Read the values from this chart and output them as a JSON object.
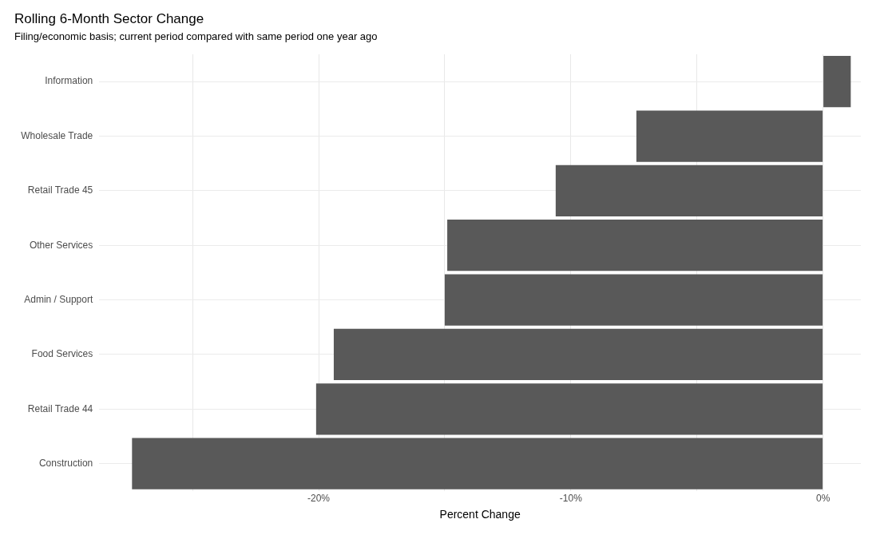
{
  "chart_data": {
    "type": "bar",
    "orientation": "horizontal",
    "title": "Rolling 6-Month Sector Change",
    "subtitle": "Filing/economic basis; current period compared with same period one year ago",
    "xlabel": "Percent Change",
    "categories": [
      "Information",
      "Wholesale Trade",
      "Retail Trade 45",
      "Other Services",
      "Admin / Support",
      "Food Services",
      "Retail Trade 44",
      "Construction"
    ],
    "values": [
      1.1,
      -7.4,
      -10.6,
      -14.9,
      -15.0,
      -19.4,
      -20.1,
      -27.4
    ],
    "color": "#595959",
    "xlim": [
      -28.7,
      1.5
    ],
    "xticks": [
      {
        "value": -25,
        "label": null
      },
      {
        "value": -20,
        "label": "-20%"
      },
      {
        "value": -15,
        "label": null
      },
      {
        "value": -10,
        "label": "-10%"
      },
      {
        "value": -5,
        "label": null
      },
      {
        "value": 0,
        "label": "0%"
      }
    ],
    "grid": true,
    "legend": false
  }
}
